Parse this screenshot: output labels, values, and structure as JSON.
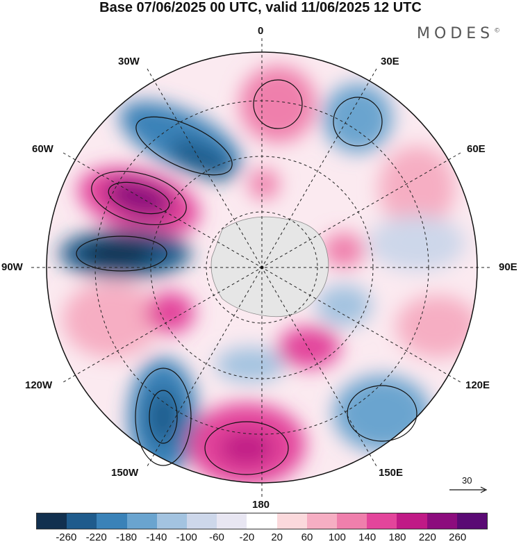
{
  "title": "Base 07/06/2025 00 UTC, valid 11/06/2025 12 UTC",
  "brand": {
    "name": "MODES",
    "mark": "©"
  },
  "longitude_labels": [
    "0",
    "30E",
    "60E",
    "90E",
    "120E",
    "150E",
    "180",
    "150W",
    "120W",
    "90W",
    "60W",
    "30W"
  ],
  "colorbar": {
    "colors": [
      "#12304f",
      "#1f5b8c",
      "#3a82b8",
      "#6aa4cf",
      "#a3c3e0",
      "#cdd7ea",
      "#e8e6f2",
      "#ffffff",
      "#fbd9dc",
      "#f6aec3",
      "#ef7fac",
      "#e3459b",
      "#c01a86",
      "#8c0c7d",
      "#5a0a74"
    ],
    "ticks": [
      "-260",
      "-220",
      "-180",
      "-140",
      "-100",
      "-60",
      "-20",
      "20",
      "60",
      "100",
      "140",
      "180",
      "220",
      "260"
    ]
  },
  "vector_scale_label": "30"
}
